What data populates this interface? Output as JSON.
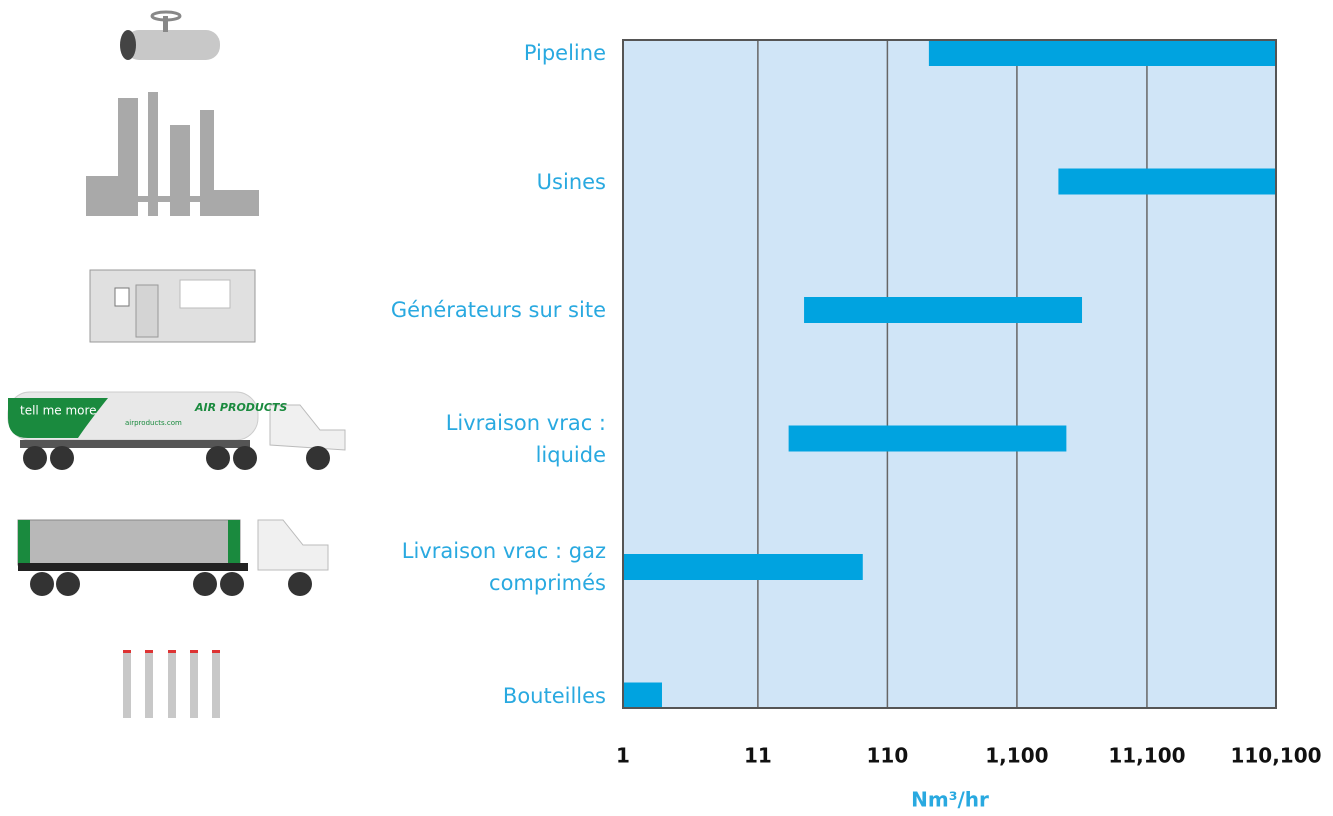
{
  "chart_data": {
    "type": "bar",
    "categories": [
      "Pipeline",
      "Usines",
      "Générateurs sur site",
      "Livraison vrac :\nliquide",
      "Livraison vrac : gaz\ncomprimés",
      "Bouteilles"
    ],
    "starts": [
      230,
      2300,
      25,
      19,
      1,
      1
    ],
    "ends": [
      110100,
      110100,
      3500,
      2650,
      71,
      2
    ],
    "color": "#00a3e0",
    "xlim": [
      1,
      110100
    ],
    "xticks": [
      1,
      11,
      110,
      {
        "value": 1100,
        "label": "1,100"
      },
      {
        "value": 11100,
        "label": "11,100"
      },
      {
        "value": 110100,
        "label": "110,100"
      }
    ],
    "xscale": "log",
    "grid": true,
    "xlabel": "Nm³/hr",
    "annotations": [
      "tell me more",
      "AIR PRODUCTS",
      "airproducts.com"
    ]
  }
}
